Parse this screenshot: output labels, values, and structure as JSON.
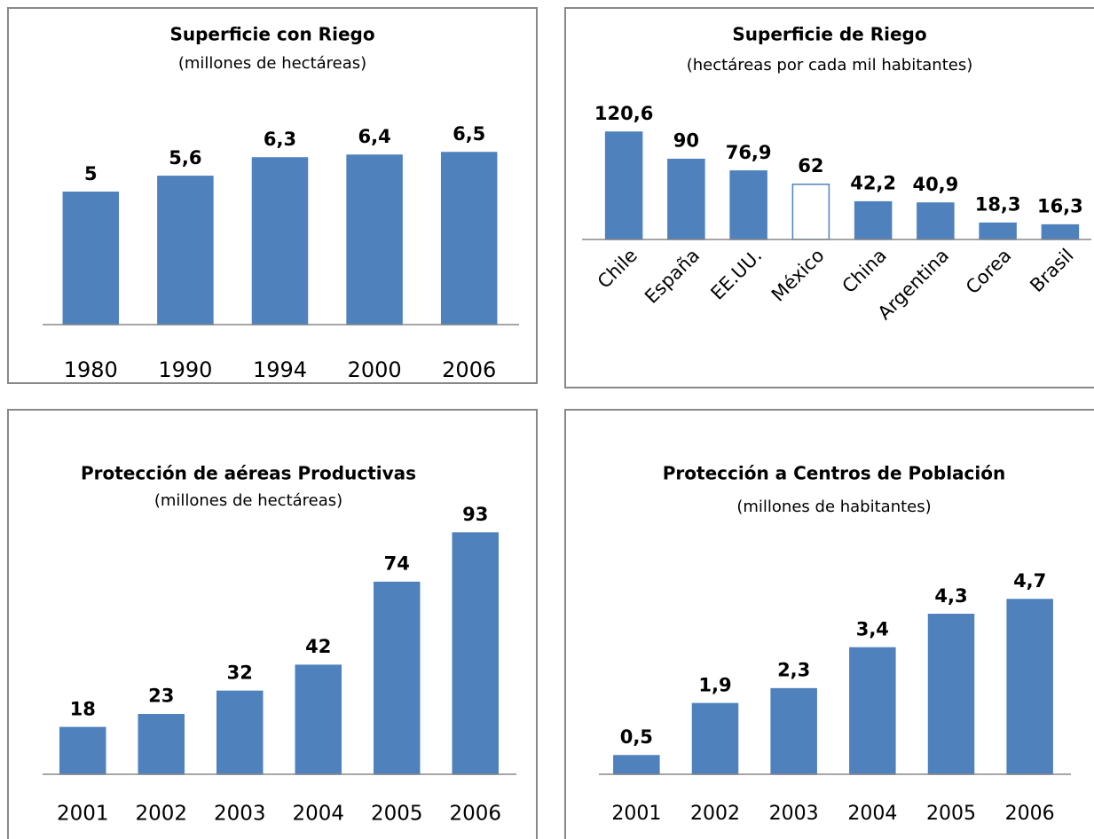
{
  "chart_data": [
    {
      "type": "bar",
      "title": "Superficie con Riego",
      "subtitle": "(millones de hectáreas)",
      "categories": [
        "1980",
        "1990",
        "1994",
        "2000",
        "2006"
      ],
      "values": [
        5,
        5.6,
        6.3,
        6.4,
        6.5
      ],
      "value_labels": [
        "5",
        "5,6",
        "6,3",
        "6,4",
        "6,5"
      ],
      "color": "#4f81bd"
    },
    {
      "type": "bar",
      "title": "Superficie de Riego",
      "subtitle": "(hectáreas por cada mil habitantes)",
      "categories": [
        "Chile",
        "España",
        "EE.UU.",
        "México",
        "China",
        "Argentina",
        "Corea",
        "Brasil"
      ],
      "values": [
        120.6,
        90,
        76.9,
        62,
        42.2,
        40.9,
        18.3,
        16.3
      ],
      "value_labels": [
        "120,6",
        "90",
        "76,9",
        "62",
        "42,2",
        "40,9",
        "18,3",
        "16,3"
      ],
      "color": "#4f81bd",
      "colors": [
        "#4f81bd",
        "#4f81bd",
        "#4f81bd",
        "#ffffff",
        "#4f81bd",
        "#4f81bd",
        "#4f81bd",
        "#4f81bd"
      ]
    },
    {
      "type": "bar",
      "title": "Protección de aéreas Productivas",
      "subtitle": "(millones de hectáreas)",
      "categories": [
        "2001",
        "2002",
        "2003",
        "2004",
        "2005",
        "2006"
      ],
      "values": [
        18,
        23,
        32,
        42,
        74,
        93
      ],
      "color": "#4f81bd"
    },
    {
      "type": "bar",
      "title": "Protección a Centros de Población",
      "subtitle": "(millones de habitantes)",
      "categories": [
        "2001",
        "2002",
        "2003",
        "2004",
        "2005",
        "2006"
      ],
      "values": [
        0.5,
        1.9,
        2.3,
        3.4,
        4.3,
        4.7
      ],
      "value_labels": [
        "0,5",
        "1,9",
        "2,3",
        "3,4",
        "4,3",
        "4,7"
      ],
      "color": "#4f81bd"
    }
  ]
}
